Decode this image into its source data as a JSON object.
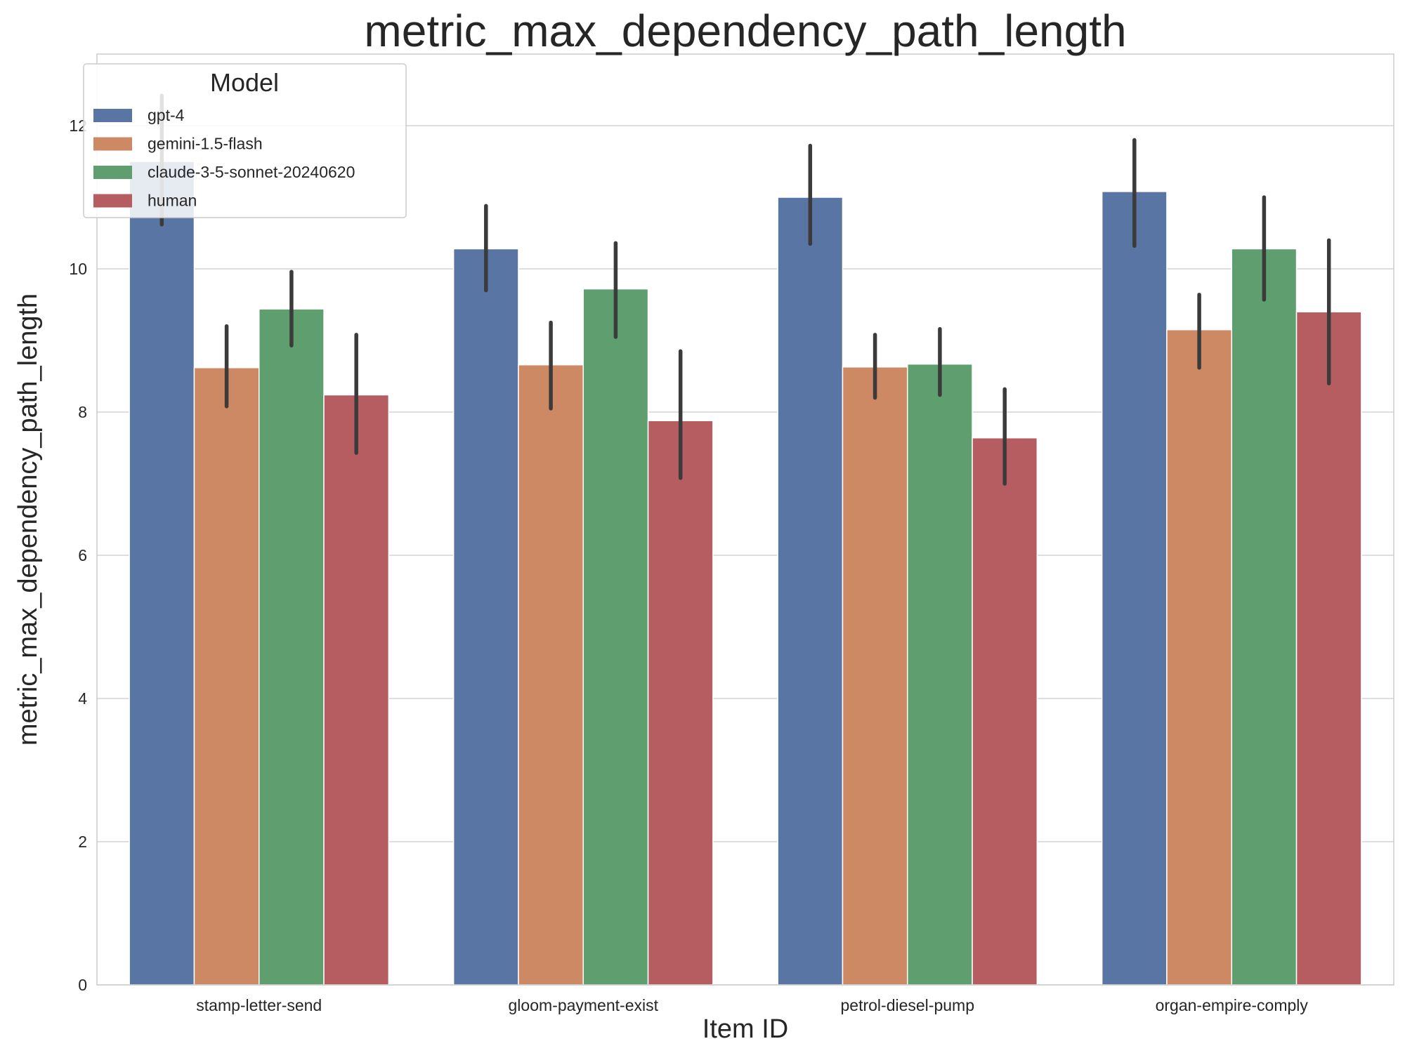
{
  "chart_data": {
    "type": "bar",
    "title": "metric_max_dependency_path_length",
    "xlabel": "Item ID",
    "ylabel": "metric_max_dependency_path_length",
    "ylim": [
      0,
      13
    ],
    "yticks": [
      0,
      2,
      4,
      6,
      8,
      10,
      12
    ],
    "grid": true,
    "legend": {
      "title": "Model",
      "placement": "top-left"
    },
    "categories": [
      "stamp-letter-send",
      "gloom-payment-exist",
      "petrol-diesel-pump",
      "organ-empire-comply"
    ],
    "series": [
      {
        "name": "gpt-4",
        "color": "#5975a4",
        "values": [
          11.5,
          10.28,
          11.0,
          11.08
        ],
        "error_low": [
          10.62,
          9.7,
          10.35,
          10.32
        ],
        "error_high": [
          12.42,
          10.88,
          11.72,
          11.8
        ]
      },
      {
        "name": "gemini-1.5-flash",
        "color": "#cc8963",
        "values": [
          8.62,
          8.66,
          8.63,
          9.15
        ],
        "error_low": [
          8.08,
          8.05,
          8.2,
          8.62
        ],
        "error_high": [
          9.2,
          9.25,
          9.08,
          9.64
        ]
      },
      {
        "name": "claude-3-5-sonnet-20240620",
        "color": "#5f9e6e",
        "values": [
          9.44,
          9.72,
          8.67,
          10.28
        ],
        "error_low": [
          8.93,
          9.05,
          8.24,
          9.57
        ],
        "error_high": [
          9.96,
          10.36,
          9.16,
          11.0
        ]
      },
      {
        "name": "human",
        "color": "#b55d60",
        "values": [
          8.24,
          7.88,
          7.64,
          9.4
        ],
        "error_low": [
          7.43,
          7.08,
          7.0,
          8.4
        ],
        "error_high": [
          9.08,
          8.85,
          8.32,
          10.4
        ]
      }
    ]
  }
}
